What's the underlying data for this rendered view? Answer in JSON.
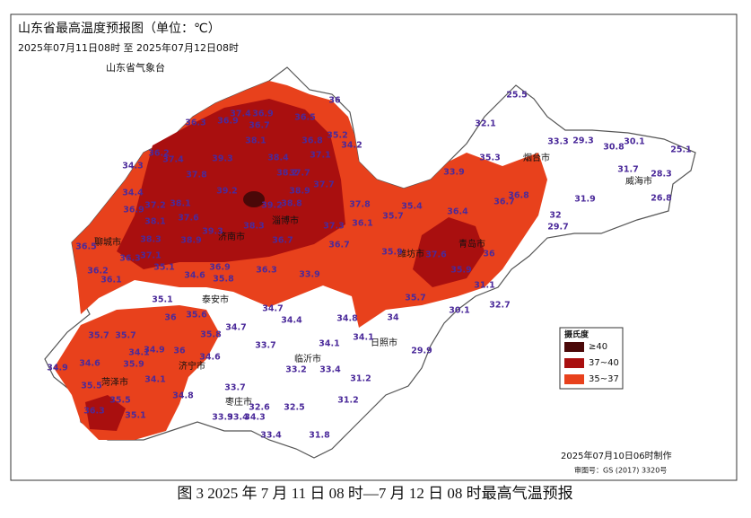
{
  "header": {
    "title": "山东省最高温度预报图（单位：℃）",
    "period": "2025年07月11日08时 至 2025年07月12日08时",
    "agency": "山东省气象台"
  },
  "legend": {
    "title": "摄氏度",
    "items": [
      {
        "label": "≥40",
        "color": "#4a0808"
      },
      {
        "label": "37~40",
        "color": "#a90f0f"
      },
      {
        "label": "35~37",
        "color": "#e8411c"
      }
    ]
  },
  "cities": [
    "聊城市",
    "济南市",
    "淄博市",
    "潍坊市",
    "青岛市",
    "烟台市",
    "威海市",
    "泰安市",
    "临沂市",
    "日照市",
    "济宁市",
    "菏泽市",
    "枣庄市"
  ],
  "stations": {
    "values": [
      36.3,
      37.4,
      36.9,
      36.9,
      36.7,
      36.5,
      36,
      35.2,
      34.2,
      38.1,
      36.8,
      37.4,
      39.3,
      37.1,
      38.4,
      36.2,
      34.3,
      37.8,
      38.2,
      37.7,
      34.4,
      39.2,
      38.9,
      37.7,
      36.9,
      37.2,
      38.1,
      39.2,
      38.8,
      37.6,
      38.1,
      38.3,
      37.3,
      36.1,
      37.8,
      35.7,
      35.4,
      39.3,
      38.9,
      36.7,
      36.7,
      36.5,
      38.3,
      37.1,
      36.3,
      35.1,
      36.2,
      36.1,
      34.6,
      36.9,
      35.8,
      36.3,
      33.9,
      35.9,
      37.6,
      35.9,
      36,
      36.4,
      33.9,
      35.3,
      36.8,
      36.7,
      32,
      29.7,
      31.9,
      31.7,
      28.3,
      26.8,
      25.1,
      30.1,
      30.8,
      33.3,
      29.3,
      32.1,
      25.5,
      31.1,
      32.7,
      30.1,
      35.7,
      34,
      34.1,
      34.8,
      29.9,
      34.7,
      34.4,
      33.7,
      34.1,
      35.1,
      36,
      35.6,
      34.7,
      35.7,
      35.7,
      34.1,
      34.9,
      36,
      35.8,
      34.6,
      34.9,
      34.6,
      35.9,
      34.1,
      33.4,
      33.2,
      31.2,
      35.5,
      34.8,
      33.7,
      35.5,
      36.3,
      35.1,
      32.6,
      32.5,
      31.2,
      33.9,
      33.4,
      34.3,
      33.4,
      31.8
    ]
  },
  "footer": {
    "made": "2025年07月10日06时制作",
    "approval": "审图号：GS (2017) 3320号"
  },
  "caption": "图 3 2025 年 7 月 11 日 08 时—7 月 12 日 08 时最高气温预报"
}
